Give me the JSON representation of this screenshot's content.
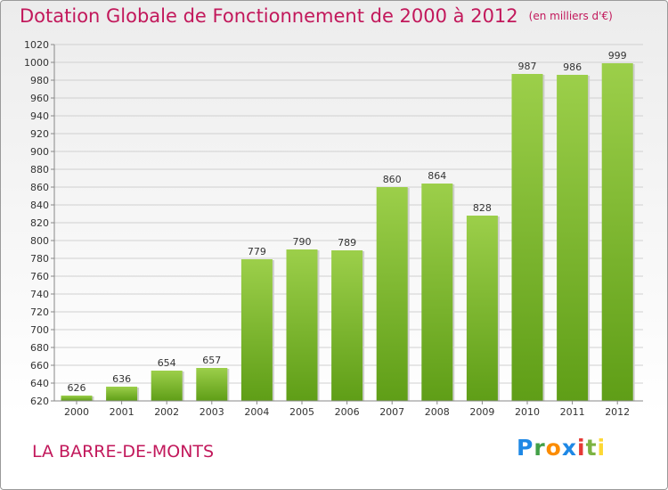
{
  "header": {
    "title": "Dotation Globale de Fonctionnement de 2000 à 2012",
    "unit": "(en milliers d'€)"
  },
  "footer": {
    "commune": "LA BARRE-DE-MONTS",
    "brand": [
      "P",
      "r",
      "o",
      "x",
      "i",
      "t",
      "i"
    ]
  },
  "colors": {
    "title": "#c2185b",
    "bar_top": "#9ccf4a",
    "bar_bottom": "#5f9e17",
    "grid": "#d0d0d0"
  },
  "chart_data": {
    "type": "bar",
    "title": "Dotation Globale de Fonctionnement de 2000 à 2012",
    "xlabel": "",
    "ylabel": "",
    "categories": [
      "2000",
      "2001",
      "2002",
      "2003",
      "2004",
      "2005",
      "2006",
      "2007",
      "2008",
      "2009",
      "2010",
      "2011",
      "2012"
    ],
    "values": [
      626,
      636,
      654,
      657,
      779,
      790,
      789,
      860,
      864,
      828,
      987,
      986,
      999
    ],
    "ylim": [
      620,
      1020
    ],
    "ytick_step": 20,
    "grid": true,
    "legend": "none"
  }
}
